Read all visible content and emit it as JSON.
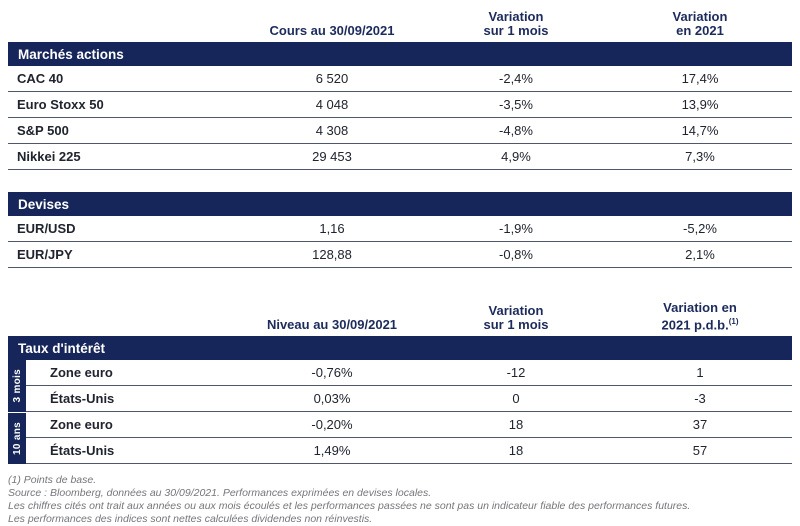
{
  "colors": {
    "navy_bar": "#17265a",
    "header_text": "#1c2b5c",
    "body_text": "#20242f",
    "row_border": "#51566b",
    "footnote_text": "#75767a"
  },
  "table_markets": {
    "header": {
      "price": "Cours au 30/09/2021",
      "month_line1": "Variation",
      "month_line2": "sur 1 mois",
      "year_line1": "Variation",
      "year_line2": "en 2021"
    },
    "sections": {
      "actions": {
        "title": "Marchés actions",
        "rows": [
          {
            "label": "CAC 40",
            "value": "6 520",
            "var_month": "-2,4%",
            "var_year": "17,4%"
          },
          {
            "label": "Euro Stoxx 50",
            "value": "4 048",
            "var_month": "-3,5%",
            "var_year": "13,9%"
          },
          {
            "label": "S&P 500",
            "value": "4 308",
            "var_month": "-4,8%",
            "var_year": "14,7%"
          },
          {
            "label": "Nikkei 225",
            "value": "29 453",
            "var_month": "4,9%",
            "var_year": "7,3%"
          }
        ]
      },
      "devises": {
        "title": "Devises",
        "rows": [
          {
            "label": "EUR/USD",
            "value": "1,16",
            "var_month": "-1,9%",
            "var_year": "-5,2%"
          },
          {
            "label": "EUR/JPY",
            "value": "128,88",
            "var_month": "-0,8%",
            "var_year": "2,1%"
          }
        ]
      }
    }
  },
  "table_rates": {
    "header": {
      "level": "Niveau au 30/09/2021",
      "month_line1": "Variation",
      "month_line2": "sur 1 mois",
      "year_line1": "Variation en",
      "year_line2": "2021 p.d.b.",
      "year_sup": "(1)"
    },
    "title": "Taux d'intérêt",
    "groups": [
      {
        "group_label": "3 mois",
        "rows": [
          {
            "label": "Zone euro",
            "value": "-0,76%",
            "var_month": "-12",
            "var_year": "1"
          },
          {
            "label": "États-Unis",
            "value": "0,03%",
            "var_month": "0",
            "var_year": "-3"
          }
        ]
      },
      {
        "group_label": "10 ans",
        "rows": [
          {
            "label": "Zone euro",
            "value": "-0,20%",
            "var_month": "18",
            "var_year": "37"
          },
          {
            "label": "États-Unis",
            "value": "1,49%",
            "var_month": "18",
            "var_year": "57"
          }
        ]
      }
    ]
  },
  "footnotes": [
    "(1) Points de base.",
    "Source : Bloomberg, données au 30/09/2021. Performances exprimées en devises locales.",
    "Les chiffres cités ont trait aux années ou aux mois écoulés et les performances passées ne sont pas un indicateur fiable des performances futures.",
    "Les performances des indices sont nettes calculées dividendes non réinvestis."
  ]
}
